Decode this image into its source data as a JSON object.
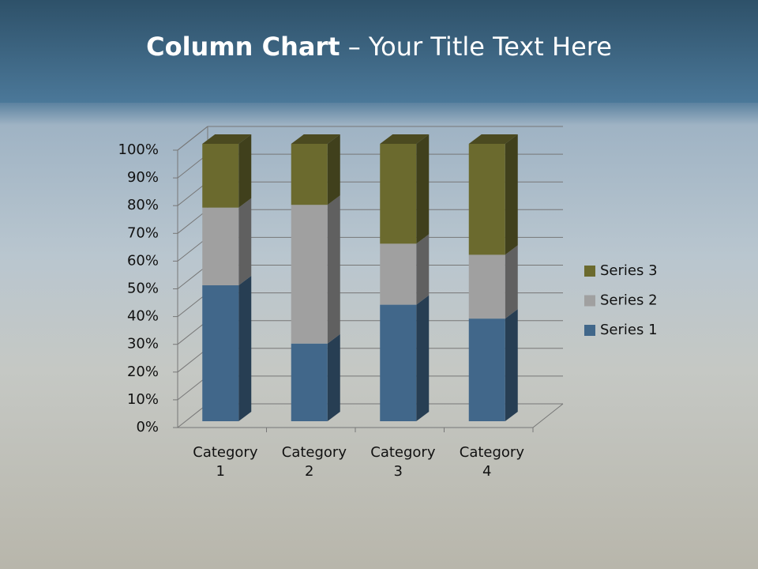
{
  "chart_data": {
    "type": "stacked_bar_3d",
    "title": [
      "Column Chart",
      " – Your Title Text Here"
    ],
    "categories": [
      "Category 1",
      "Category 2",
      "Category 3",
      "Category 4"
    ],
    "series": [
      {
        "name": "Series 1",
        "color": "#41678a",
        "values": [
          49,
          28,
          42,
          37
        ]
      },
      {
        "name": "Series 2",
        "color": "#a0a0a0",
        "values": [
          28,
          50,
          22,
          23
        ]
      },
      {
        "name": "Series 3",
        "color": "#6b6a2e",
        "values": [
          23,
          22,
          36,
          40
        ]
      }
    ],
    "ylim": [
      0,
      100
    ],
    "yticks": [
      {
        "value": 0,
        "label": "0%"
      },
      {
        "value": 10,
        "label": "10%"
      },
      {
        "value": 20,
        "label": "20%"
      },
      {
        "value": 30,
        "label": "30%"
      },
      {
        "value": 40,
        "label": "40%"
      },
      {
        "value": 50,
        "label": "50%"
      },
      {
        "value": 60,
        "label": "60%"
      },
      {
        "value": 70,
        "label": "70%"
      },
      {
        "value": 80,
        "label": "80%"
      },
      {
        "value": 90,
        "label": "90%"
      },
      {
        "value": 100,
        "label": "100%"
      }
    ],
    "grid": true,
    "legend": "right"
  }
}
